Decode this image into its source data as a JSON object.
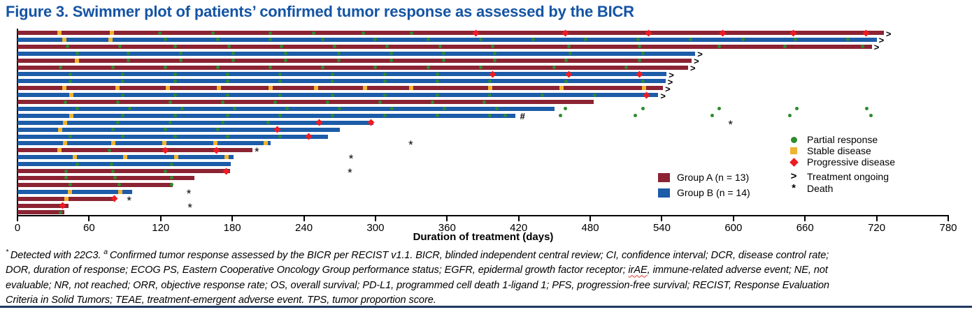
{
  "title": "Figure 3. Swimmer plot of patients’ confirmed tumor response as assessed by the BICR",
  "colors": {
    "title_blue": "#1454A4",
    "group_a_red": "#8B2333",
    "group_b_blue": "#1C5CA8",
    "partial_response_green": "#2E8B2E",
    "stable_disease_yellow": "#F0B42F",
    "progressive_disease_red": "#EC1C23",
    "axis_black": "#000000",
    "bottom_border_navy": "#1F3864"
  },
  "legend": {
    "markers": [
      {
        "name": "partial-response",
        "label": "Partial response",
        "symbol": "circle",
        "color": "#2E8B2E"
      },
      {
        "name": "stable-disease",
        "label": "Stable disease",
        "symbol": "square",
        "color": "#F0B42F"
      },
      {
        "name": "progressive-disease",
        "label": "Progressive disease",
        "symbol": "diamond",
        "color": "#EC1C23"
      },
      {
        "name": "treatment-ongoing",
        "label": "Treatment ongoing",
        "symbol": ">",
        "color": "#000000"
      },
      {
        "name": "death",
        "label": "Death",
        "symbol": "*",
        "color": "#000000"
      }
    ],
    "groups": [
      {
        "name": "group-a",
        "label": "Group A (n = 13)",
        "color": "#8B2333"
      },
      {
        "name": "group-b",
        "label": "Group B (n = 14)",
        "color": "#1C5CA8"
      }
    ]
  },
  "chart_data": {
    "type": "swimmer",
    "xlabel": "Duration of treatment (days)",
    "xlim": [
      0,
      780
    ],
    "x_ticks": [
      0,
      60,
      120,
      180,
      240,
      300,
      360,
      420,
      480,
      540,
      600,
      660,
      720,
      780
    ],
    "ongoing_symbol": ">",
    "death_symbol": "*",
    "hash_symbol": "#",
    "marker_meaning": {
      "pr": "Partial response",
      "sd": "Stable disease",
      "pd": "Progressive disease",
      "post": "Partial response (after treatment end)"
    },
    "patients": [
      {
        "group": "A",
        "duration": 726,
        "ongoing": true,
        "death": null,
        "hash": false,
        "sd": [
          35,
          79
        ],
        "pr": [
          119,
          164,
          212,
          248,
          290,
          330
        ],
        "pd": [
          384,
          459,
          529,
          591,
          650,
          711
        ],
        "post": []
      },
      {
        "group": "B",
        "duration": 720,
        "ongoing": true,
        "death": null,
        "hash": false,
        "sd": [
          39,
          78
        ],
        "pr": [
          124,
          168,
          212,
          256,
          300,
          344,
          388,
          432,
          476,
          520,
          564,
          608,
          652,
          696
        ],
        "pd": [],
        "post": []
      },
      {
        "group": "A",
        "duration": 716,
        "ongoing": true,
        "death": null,
        "hash": false,
        "sd": [],
        "pr": [
          42,
          86,
          132,
          177,
          221,
          266,
          310,
          354,
          398,
          462,
          521,
          588,
          643,
          708
        ],
        "pd": [],
        "post": []
      },
      {
        "group": "B",
        "duration": 568,
        "ongoing": true,
        "death": null,
        "hash": false,
        "sd": [],
        "pr": [
          50,
          93,
          137,
          181,
          225,
          269,
          313,
          357,
          400,
          463,
          524
        ],
        "pd": [],
        "post": []
      },
      {
        "group": "A",
        "duration": 565,
        "ongoing": true,
        "death": null,
        "hash": false,
        "sd": [
          50
        ],
        "pr": [
          93,
          137,
          181,
          225,
          269,
          313,
          357,
          400,
          460,
          521
        ],
        "pd": [],
        "post": []
      },
      {
        "group": "A",
        "duration": 562,
        "ongoing": true,
        "death": null,
        "hash": false,
        "sd": [],
        "pr": [
          36,
          80,
          124,
          168,
          212,
          256,
          300,
          344,
          388,
          450,
          510
        ],
        "pd": [],
        "post": []
      },
      {
        "group": "B",
        "duration": 544,
        "ongoing": true,
        "death": null,
        "hash": false,
        "sd": [],
        "pr": [
          44,
          88,
          132,
          176,
          220,
          264,
          308,
          352
        ],
        "pd": [
          398,
          462,
          521
        ],
        "post": []
      },
      {
        "group": "B",
        "duration": 543,
        "ongoing": true,
        "death": null,
        "hash": false,
        "sd": [],
        "pr": [
          44,
          88,
          132,
          176,
          220,
          264,
          308,
          352,
          396,
          460,
          524
        ],
        "pd": [],
        "post": []
      },
      {
        "group": "A",
        "duration": 541,
        "ongoing": true,
        "death": null,
        "hash": false,
        "sd": [
          39,
          84,
          126,
          169,
          212,
          250,
          291,
          330,
          396,
          456,
          525
        ],
        "pr": [],
        "pd": [],
        "post": []
      },
      {
        "group": "B",
        "duration": 537,
        "ongoing": true,
        "death": null,
        "hash": false,
        "sd": [
          45
        ],
        "pr": [
          88,
          132,
          176,
          220,
          264,
          308,
          352,
          396,
          440,
          484
        ],
        "pd": [
          527
        ],
        "post": []
      },
      {
        "group": "A",
        "duration": 483,
        "ongoing": false,
        "death": null,
        "hash": false,
        "sd": [],
        "pr": [
          40,
          84,
          128,
          172,
          216,
          260,
          304,
          348,
          391
        ],
        "pd": [],
        "post": []
      },
      {
        "group": "B",
        "duration": 450,
        "ongoing": false,
        "death": null,
        "hash": false,
        "sd": [],
        "pr": [
          50,
          94,
          138,
          182,
          226,
          270,
          314,
          358,
          402
        ],
        "pd": [],
        "post": [
          459,
          524,
          588,
          653,
          712
        ]
      },
      {
        "group": "B",
        "duration": 417,
        "ongoing": false,
        "death": null,
        "hash": true,
        "sd": [
          45
        ],
        "pr": [
          88,
          132,
          176,
          220,
          264,
          308,
          352,
          396,
          409
        ],
        "pd": [],
        "post": [
          455,
          518,
          582,
          647,
          715
        ]
      },
      {
        "group": "B",
        "duration": 298,
        "ongoing": false,
        "death": 598,
        "hash": false,
        "sd": [
          40
        ],
        "pr": [
          84,
          128,
          172,
          210
        ],
        "pd": [
          253,
          296
        ],
        "post": []
      },
      {
        "group": "B",
        "duration": 270,
        "ongoing": false,
        "death": null,
        "hash": false,
        "sd": [
          36
        ],
        "pr": [
          80,
          124,
          168
        ],
        "pd": [
          218
        ],
        "post": []
      },
      {
        "group": "B",
        "duration": 260,
        "ongoing": false,
        "death": null,
        "hash": false,
        "sd": [],
        "pr": [
          44,
          88,
          132,
          176,
          220
        ],
        "pd": [
          244
        ],
        "post": []
      },
      {
        "group": "B",
        "duration": 212,
        "ongoing": false,
        "death": 330,
        "hash": false,
        "sd": [
          40,
          80,
          123,
          166,
          208
        ],
        "pr": [],
        "pd": [],
        "post": []
      },
      {
        "group": "A",
        "duration": 197,
        "ongoing": false,
        "death": 201,
        "hash": false,
        "sd": [
          35
        ],
        "pr": [
          77
        ],
        "pd": [
          124,
          167
        ],
        "post": []
      },
      {
        "group": "B",
        "duration": 181,
        "ongoing": false,
        "death": 280,
        "hash": false,
        "sd": [
          48,
          90,
          133,
          175
        ],
        "pr": [],
        "pd": [],
        "post": []
      },
      {
        "group": "B",
        "duration": 179,
        "ongoing": false,
        "death": null,
        "hash": false,
        "sd": [],
        "pr": [
          50,
          79,
          129
        ],
        "pd": [],
        "post": []
      },
      {
        "group": "A",
        "duration": 178,
        "ongoing": false,
        "death": 279,
        "hash": false,
        "sd": [],
        "pr": [
          41,
          80,
          124
        ],
        "pd": [
          175
        ],
        "post": []
      },
      {
        "group": "A",
        "duration": 148,
        "ongoing": false,
        "death": null,
        "hash": false,
        "sd": [],
        "pr": [
          41,
          82,
          129
        ],
        "pd": [],
        "post": []
      },
      {
        "group": "A",
        "duration": 130,
        "ongoing": false,
        "death": null,
        "hash": false,
        "sd": [],
        "pr": [
          44,
          85,
          129
        ],
        "pd": [],
        "post": []
      },
      {
        "group": "B",
        "duration": 96,
        "ongoing": false,
        "death": 144,
        "hash": false,
        "sd": [
          44,
          86
        ],
        "pr": [],
        "pd": [],
        "post": []
      },
      {
        "group": "A",
        "duration": 82,
        "ongoing": false,
        "death": 94,
        "hash": false,
        "sd": [
          41
        ],
        "pr": [],
        "pd": [
          81
        ],
        "post": []
      },
      {
        "group": "A",
        "duration": 43,
        "ongoing": false,
        "death": 145,
        "hash": false,
        "sd": [],
        "pr": [],
        "pd": [
          38
        ],
        "post": []
      },
      {
        "group": "A",
        "duration": 39,
        "ongoing": false,
        "death": null,
        "hash": false,
        "sd": [],
        "pr": [
          36
        ],
        "pd": [],
        "post": []
      }
    ]
  },
  "axis": {
    "label": "Duration of treatment (days)"
  },
  "footnote": {
    "lines": [
      [
        {
          "t": "* ",
          "s": "sup"
        },
        {
          "t": "Detected with 22C3. ",
          "s": "n"
        },
        {
          "t": "a ",
          "s": "sup"
        },
        {
          "t": "Confirmed tumor response assessed by the BICR per RECIST v1.1. BICR, blinded independent central review; CI, confidence interval; DCR, disease control rate;",
          "s": "n"
        }
      ],
      [
        {
          "t": "DOR, duration of response; ECOG PS, Eastern Cooperative Oncology Group performance status; EGFR, epidermal growth factor receptor; ",
          "s": "n"
        },
        {
          "t": "irAE",
          "s": "sq"
        },
        {
          "t": ", immune-related adverse event; NE, not",
          "s": "n"
        }
      ],
      [
        {
          "t": "evaluable; NR, not reached; ORR, objective response rate; OS, overall survival; PD-L1, programmed cell death 1-ligand 1; PFS, progression-free survival; RECIST, Response Evaluation",
          "s": "n"
        }
      ],
      [
        {
          "t": "Criteria in Solid Tumors; TEAE, treatment-emergent adverse event. TPS, tumor proportion score.",
          "s": "n"
        }
      ]
    ]
  }
}
